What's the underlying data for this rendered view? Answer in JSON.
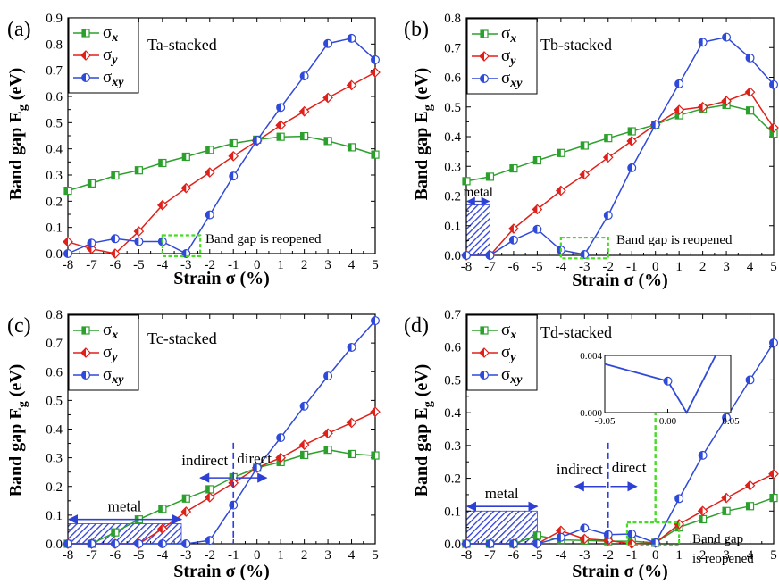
{
  "colors": {
    "sigma_x": "#2ca02c",
    "sigma_y": "#e0201a",
    "sigma_xy": "#2f49d8",
    "annotation_blue": "#2e3fd6",
    "highlight_green": "#44dd22",
    "axis": "#000000"
  },
  "strings": {
    "gap_reopened": "Band gap is reopened",
    "gap_reopened_l1": "Band gap",
    "gap_reopened_l2": "is reopened",
    "metal": "metal",
    "indirect": "indirect",
    "direct": "direct"
  },
  "chart_data": [
    {
      "type": "line",
      "panel_label": "(a)",
      "title": "Ta-stacked",
      "xlabel": "Strain σ (%)",
      "ylabel": "Band gap E_g (eV)",
      "xlim": [
        -8,
        5
      ],
      "ylim": [
        0,
        0.9
      ],
      "xticks": [
        "-8",
        "-7",
        "-6",
        "-5",
        "-4",
        "-3",
        "-2",
        "-1",
        "0",
        "1",
        "2",
        "3",
        "4",
        "5"
      ],
      "yticks": [
        "0.0",
        "0.1",
        "0.2",
        "0.3",
        "0.4",
        "0.5",
        "0.6",
        "0.7",
        "0.8",
        "0.9"
      ],
      "legend": [
        "σx",
        "σy",
        "σxy"
      ],
      "series": [
        {
          "name": "σx",
          "x": [
            -8,
            -7,
            -6,
            -5,
            -4,
            -3,
            -2,
            -1,
            0,
            1,
            2,
            3,
            4,
            5
          ],
          "y": [
            0.24,
            0.268,
            0.298,
            0.318,
            0.346,
            0.37,
            0.396,
            0.421,
            0.435,
            0.446,
            0.448,
            0.43,
            0.406,
            0.378
          ]
        },
        {
          "name": "σy",
          "x": [
            -8,
            -7,
            -6,
            -5,
            -4,
            -3,
            -2,
            -1,
            0,
            1,
            2,
            3,
            4,
            5
          ],
          "y": [
            0.045,
            0.018,
            0.0,
            0.085,
            0.185,
            0.25,
            0.31,
            0.372,
            0.43,
            0.49,
            0.543,
            0.595,
            0.643,
            0.692
          ]
        },
        {
          "name": "σxy",
          "x": [
            -8,
            -7,
            -6,
            -5,
            -4,
            -3,
            -2,
            -1,
            0,
            1,
            2,
            3,
            4,
            5
          ],
          "y": [
            0.0,
            0.04,
            0.057,
            0.046,
            0.046,
            0.0,
            0.148,
            0.296,
            0.433,
            0.558,
            0.678,
            0.802,
            0.822,
            0.74
          ]
        }
      ],
      "annotations": {
        "gap_box": {
          "x": [
            -4,
            -2.4
          ],
          "y": [
            -0.01,
            0.07
          ]
        }
      }
    },
    {
      "type": "line",
      "panel_label": "(b)",
      "title": "Tb-stacked",
      "xlabel": "Strain σ (%)",
      "ylabel": "Band gap E_g (eV)",
      "xlim": [
        -8,
        5
      ],
      "ylim": [
        0,
        0.8
      ],
      "xticks": [
        "-8",
        "-7",
        "-6",
        "-5",
        "-4",
        "-3",
        "-2",
        "-1",
        "0",
        "1",
        "2",
        "3",
        "4",
        "5"
      ],
      "yticks": [
        "0.0",
        "0.1",
        "0.2",
        "0.3",
        "0.4",
        "0.5",
        "0.6",
        "0.7",
        "0.8"
      ],
      "legend": [
        "σx",
        "σy",
        "σxy"
      ],
      "series": [
        {
          "name": "σx",
          "x": [
            -8,
            -7,
            -6,
            -5,
            -4,
            -3,
            -2,
            -1,
            0,
            1,
            2,
            3,
            4,
            5
          ],
          "y": [
            0.25,
            0.265,
            0.293,
            0.32,
            0.345,
            0.37,
            0.395,
            0.418,
            0.44,
            0.472,
            0.494,
            0.507,
            0.488,
            0.41
          ]
        },
        {
          "name": "σy",
          "x": [
            -8,
            -7,
            -6,
            -5,
            -4,
            -3,
            -2,
            -1,
            0,
            1,
            2,
            3,
            4,
            5
          ],
          "y": [
            0.0,
            0.0,
            0.09,
            0.155,
            0.218,
            0.272,
            0.33,
            0.385,
            0.44,
            0.49,
            0.5,
            0.52,
            0.55,
            0.43
          ]
        },
        {
          "name": "σxy",
          "x": [
            -8,
            -7,
            -6,
            -5,
            -4,
            -3,
            -2,
            -1,
            0,
            1,
            2,
            3,
            4,
            5
          ],
          "y": [
            0.0,
            0.0,
            0.052,
            0.088,
            0.018,
            0.003,
            0.135,
            0.295,
            0.44,
            0.578,
            0.718,
            0.735,
            0.665,
            0.575
          ]
        }
      ],
      "annotations": {
        "metal_region": {
          "x": [
            -8,
            -7
          ],
          "y": [
            0,
            0.17
          ]
        },
        "gap_box": {
          "x": [
            -4,
            -2
          ],
          "y": [
            -0.01,
            0.06
          ]
        }
      }
    },
    {
      "type": "line",
      "panel_label": "(c)",
      "title": "Tc-stacked",
      "xlabel": "Strain σ (%)",
      "ylabel": "Band gap E_g (eV)",
      "xlim": [
        -8,
        5
      ],
      "ylim": [
        0,
        0.8
      ],
      "xticks": [
        "-8",
        "-7",
        "-6",
        "-5",
        "-4",
        "-3",
        "-2",
        "-1",
        "0",
        "1",
        "2",
        "3",
        "4",
        "5"
      ],
      "yticks": [
        "0.0",
        "0.1",
        "0.2",
        "0.3",
        "0.4",
        "0.5",
        "0.6",
        "0.7",
        "0.8"
      ],
      "legend": [
        "σx",
        "σy",
        "σxy"
      ],
      "series": [
        {
          "name": "σx",
          "x": [
            -8,
            -7,
            -6,
            -5,
            -4,
            -3,
            -2,
            -1,
            0,
            1,
            2,
            3,
            4,
            5
          ],
          "y": [
            0.0,
            0.0,
            0.04,
            0.085,
            0.122,
            0.158,
            0.19,
            0.232,
            0.265,
            0.285,
            0.31,
            0.328,
            0.313,
            0.308
          ]
        },
        {
          "name": "σy",
          "x": [
            -8,
            -7,
            -6,
            -5,
            -4,
            -3,
            -2,
            -1,
            0,
            1,
            2,
            3,
            4,
            5
          ],
          "y": [
            0.0,
            0.0,
            0.0,
            0.0,
            0.052,
            0.112,
            0.162,
            0.212,
            0.265,
            0.3,
            0.345,
            0.385,
            0.422,
            0.46
          ]
        },
        {
          "name": "σxy",
          "x": [
            -8,
            -7,
            -6,
            -5,
            -4,
            -3,
            -2,
            -1,
            0,
            1,
            2,
            3,
            4,
            5
          ],
          "y": [
            0.0,
            0.0,
            0.0,
            0.0,
            0.0,
            0.0,
            0.012,
            0.135,
            0.265,
            0.37,
            0.48,
            0.585,
            0.685,
            0.778
          ]
        }
      ],
      "annotations": {
        "metal_region": {
          "x": [
            -8,
            -3.2
          ],
          "y": [
            0,
            0.07
          ]
        },
        "metal_arrow": {
          "x": [
            -8,
            -3.2
          ],
          "y": 0.085
        },
        "divider_x": -1,
        "indirect_arrow": {
          "x": [
            -2.4,
            -1.1
          ],
          "y": 0.23
        },
        "direct_arrow": {
          "x": [
            -0.9,
            0.4
          ],
          "y": 0.23
        }
      }
    },
    {
      "type": "line",
      "panel_label": "(d)",
      "title": "Td-stacked",
      "xlabel": "Strain σ (%)",
      "ylabel": "Band gap E_g (eV)",
      "xlim": [
        -8,
        5
      ],
      "ylim": [
        0,
        0.7
      ],
      "xticks": [
        "-8",
        "-7",
        "-6",
        "-5",
        "-4",
        "-3",
        "-2",
        "-1",
        "0",
        "1",
        "2",
        "3",
        "4",
        "5"
      ],
      "yticks": [
        "0.0",
        "0.1",
        "0.2",
        "0.3",
        "0.4",
        "0.5",
        "0.6",
        "0.7"
      ],
      "legend": [
        "σx",
        "σy",
        "σxy"
      ],
      "series": [
        {
          "name": "σx",
          "x": [
            -8,
            -7,
            -6,
            -5,
            -4,
            -3,
            -2,
            -1,
            0,
            1,
            2,
            3,
            4,
            5
          ],
          "y": [
            0.0,
            0.0,
            0.0,
            0.025,
            0.012,
            0.01,
            0.008,
            0.008,
            0.003,
            0.05,
            0.075,
            0.1,
            0.115,
            0.14
          ]
        },
        {
          "name": "σy",
          "x": [
            -8,
            -7,
            -6,
            -5,
            -4,
            -3,
            -2,
            -1,
            0,
            1,
            2,
            3,
            4,
            5
          ],
          "y": [
            0.0,
            0.0,
            0.0,
            0.0,
            0.04,
            0.015,
            0.01,
            0.0,
            0.003,
            0.06,
            0.1,
            0.14,
            0.178,
            0.213
          ]
        },
        {
          "name": "σxy",
          "x": [
            -8,
            -7,
            -6,
            -5,
            -4,
            -3,
            -2,
            -1,
            0,
            1,
            2,
            3,
            4,
            5
          ],
          "y": [
            0.0,
            0.0,
            0.0,
            0.0,
            0.02,
            0.048,
            0.028,
            0.03,
            0.003,
            0.138,
            0.27,
            0.385,
            0.5,
            0.613
          ]
        }
      ],
      "annotations": {
        "metal_region": {
          "x": [
            -8,
            -5
          ],
          "y": [
            0,
            0.1
          ]
        },
        "metal_arrow": {
          "x": [
            -8,
            -5
          ],
          "y": 0.114
        },
        "divider_x": -2,
        "indirect_arrow": {
          "x": [
            -3.4,
            -2.1
          ],
          "y": 0.175
        },
        "direct_arrow": {
          "x": [
            -1.9,
            -0.8
          ],
          "y": 0.175
        },
        "gap_box": {
          "x": [
            -1.2,
            1
          ],
          "y": [
            -0.005,
            0.065
          ]
        },
        "up_arrow": {
          "x": 0,
          "y": [
            0.065,
            0.445
          ]
        }
      },
      "inset": {
        "type": "line",
        "xlim": [
          -0.05,
          0.05
        ],
        "ylim": [
          0,
          0.004
        ],
        "xticks": [
          "-0.05",
          "0.00",
          "0.05"
        ],
        "yticks": [
          "0.000",
          "0.004"
        ],
        "series": [
          {
            "name": "σxy",
            "x": [
              -0.05,
              0.0,
              0.015,
              0.038
            ],
            "y": [
              0.0034,
              0.0022,
              0.0,
              0.004
            ]
          }
        ]
      }
    }
  ]
}
